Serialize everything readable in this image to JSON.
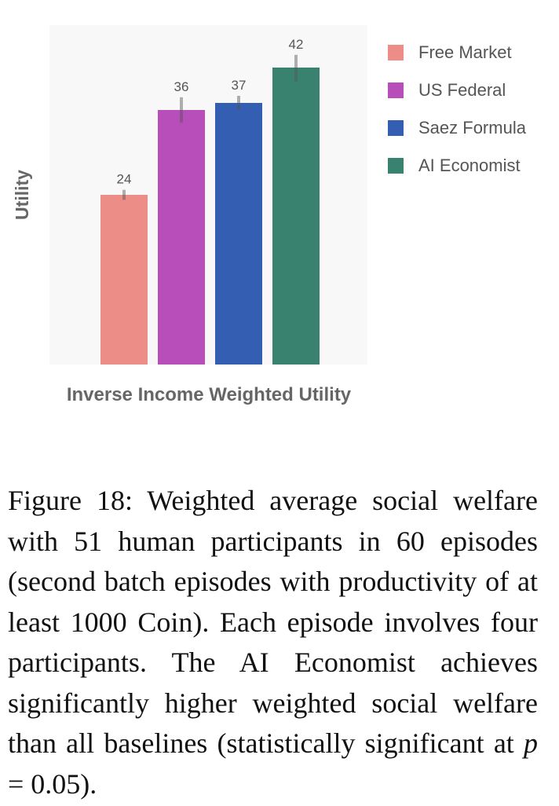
{
  "chart_data": {
    "type": "bar",
    "title": "",
    "xlabel": "Inverse Income Weighted Utility",
    "ylabel": "Utility",
    "categories": [
      "Free Market",
      "US Federal",
      "Saez Formula",
      "AI Economist"
    ],
    "values": [
      24,
      36,
      37,
      42
    ],
    "data_labels": [
      "24",
      "36",
      "37",
      "42"
    ],
    "error_bars": [
      {
        "low": 23.3,
        "high": 24.7
      },
      {
        "low": 34.2,
        "high": 37.8
      },
      {
        "low": 36.0,
        "high": 38.0
      },
      {
        "low": 40.0,
        "high": 43.8
      }
    ],
    "colors": [
      "#ec8d88",
      "#b74eb9",
      "#335eb2",
      "#3a8270"
    ],
    "ylim": [
      0,
      48
    ],
    "grid": false,
    "legend": {
      "position": "right",
      "entries": [
        "Free Market",
        "US Federal",
        "Saez Formula",
        "AI Economist"
      ]
    },
    "plot_background": "#f8f8f8"
  },
  "caption": {
    "label": "Figure 18:",
    "text_1": "Weighted average social welfare with 51 human participants in 60 episodes (second batch episodes with productivity of at least 1000 Coin). Each episode involves four participants. The AI Economist achieves significantly higher weighted social welfare than all baselines (statistically significant at",
    "p_symbol": "p",
    "text_2": "= 0.05)."
  }
}
